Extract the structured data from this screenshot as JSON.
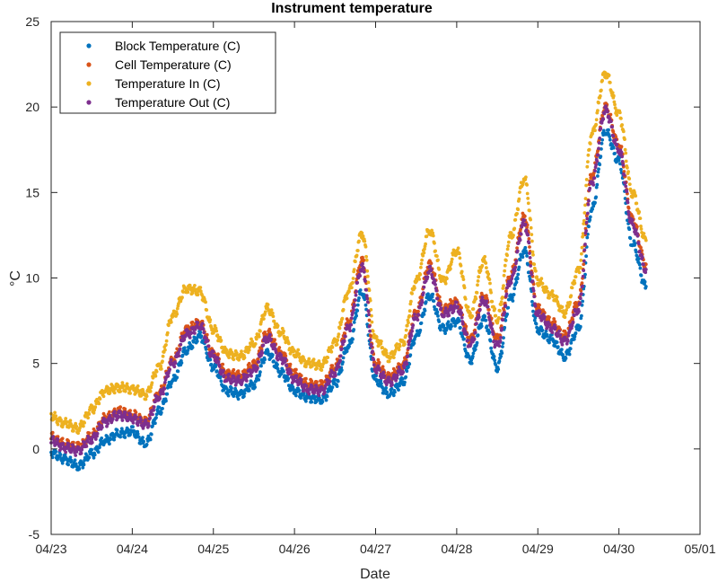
{
  "chart_data": {
    "type": "scatter",
    "title": "Instrument temperature",
    "xlabel": "Date",
    "ylabel": "°C",
    "x_ticks": [
      "04/23",
      "04/24",
      "04/25",
      "04/26",
      "04/27",
      "04/28",
      "04/29",
      "04/30",
      "05/01"
    ],
    "xlim": [
      "04/23",
      "05/01"
    ],
    "ylim": [
      -5,
      25
    ],
    "y_ticks": [
      -5,
      0,
      5,
      10,
      15,
      20,
      25
    ],
    "grid": false,
    "legend_position": "top-left",
    "series": [
      {
        "name": "Block Temperature (C)",
        "color": "#0072BD",
        "points": [
          [
            "04/23 00:00",
            -0.2
          ],
          [
            "04/23 04:00",
            -0.6
          ],
          [
            "04/23 08:00",
            -1.0
          ],
          [
            "04/23 12:00",
            -0.3
          ],
          [
            "04/23 16:00",
            0.5
          ],
          [
            "04/23 20:00",
            0.9
          ],
          [
            "04/24 00:00",
            1.0
          ],
          [
            "04/24 04:00",
            0.3
          ],
          [
            "04/24 08:00",
            2.2
          ],
          [
            "04/24 12:00",
            4.0
          ],
          [
            "04/24 16:00",
            5.8
          ],
          [
            "04/24 20:00",
            6.6
          ],
          [
            "04/25 00:00",
            4.8
          ],
          [
            "04/25 04:00",
            3.4
          ],
          [
            "04/25 08:00",
            3.2
          ],
          [
            "04/25 12:00",
            3.8
          ],
          [
            "04/25 16:00",
            5.6
          ],
          [
            "04/25 20:00",
            4.5
          ],
          [
            "04/26 00:00",
            3.4
          ],
          [
            "04/26 04:00",
            3.0
          ],
          [
            "04/26 08:00",
            2.9
          ],
          [
            "04/26 12:00",
            3.8
          ],
          [
            "04/26 16:00",
            6.0
          ],
          [
            "04/26 20:00",
            9.2
          ],
          [
            "04/27 00:00",
            4.0
          ],
          [
            "04/27 04:00",
            3.2
          ],
          [
            "04/27 08:00",
            3.9
          ],
          [
            "04/27 12:00",
            6.6
          ],
          [
            "04/27 16:00",
            9.0
          ],
          [
            "04/27 20:00",
            7.0
          ],
          [
            "04/28 00:00",
            7.5
          ],
          [
            "04/28 04:00",
            5.2
          ],
          [
            "04/28 08:00",
            7.6
          ],
          [
            "04/28 12:00",
            4.8
          ],
          [
            "04/28 16:00",
            8.8
          ],
          [
            "04/28 20:00",
            11.6
          ],
          [
            "04/29 00:00",
            7.0
          ],
          [
            "04/29 04:00",
            6.4
          ],
          [
            "04/29 08:00",
            5.4
          ],
          [
            "04/29 12:00",
            7.0
          ],
          [
            "04/29 16:00",
            14.0
          ],
          [
            "04/29 20:00",
            18.6
          ],
          [
            "04/30 00:00",
            16.8
          ],
          [
            "04/30 04:00",
            12.0
          ],
          [
            "04/30 08:00",
            9.5
          ]
        ]
      },
      {
        "name": "Cell Temperature (C)",
        "color": "#D95319",
        "points": [
          [
            "04/23 00:00",
            0.7
          ],
          [
            "04/23 04:00",
            0.3
          ],
          [
            "04/23 08:00",
            0.1
          ],
          [
            "04/23 12:00",
            0.8
          ],
          [
            "04/23 16:00",
            1.8
          ],
          [
            "04/23 20:00",
            2.2
          ],
          [
            "04/24 00:00",
            2.0
          ],
          [
            "04/24 04:00",
            1.6
          ],
          [
            "04/24 08:00",
            3.3
          ],
          [
            "04/24 12:00",
            5.2
          ],
          [
            "04/24 16:00",
            7.0
          ],
          [
            "04/24 20:00",
            7.4
          ],
          [
            "04/25 00:00",
            5.6
          ],
          [
            "04/25 04:00",
            4.4
          ],
          [
            "04/25 08:00",
            4.3
          ],
          [
            "04/25 12:00",
            4.9
          ],
          [
            "04/25 16:00",
            6.8
          ],
          [
            "04/25 20:00",
            5.6
          ],
          [
            "04/26 00:00",
            4.4
          ],
          [
            "04/26 04:00",
            3.8
          ],
          [
            "04/26 08:00",
            3.7
          ],
          [
            "04/26 12:00",
            4.8
          ],
          [
            "04/26 16:00",
            7.4
          ],
          [
            "04/26 20:00",
            11.0
          ],
          [
            "04/27 00:00",
            5.0
          ],
          [
            "04/27 04:00",
            4.2
          ],
          [
            "04/27 08:00",
            4.9
          ],
          [
            "04/27 12:00",
            8.0
          ],
          [
            "04/27 16:00",
            10.8
          ],
          [
            "04/27 20:00",
            8.2
          ],
          [
            "04/28 00:00",
            8.6
          ],
          [
            "04/28 04:00",
            6.4
          ],
          [
            "04/28 08:00",
            9.0
          ],
          [
            "04/28 12:00",
            6.4
          ],
          [
            "04/28 16:00",
            10.2
          ],
          [
            "04/28 20:00",
            13.6
          ],
          [
            "04/29 00:00",
            8.2
          ],
          [
            "04/29 04:00",
            7.4
          ],
          [
            "04/29 08:00",
            6.6
          ],
          [
            "04/29 12:00",
            8.6
          ],
          [
            "04/29 16:00",
            16.0
          ],
          [
            "04/29 20:00",
            20.0
          ],
          [
            "04/30 00:00",
            17.8
          ],
          [
            "04/30 04:00",
            13.4
          ],
          [
            "04/30 08:00",
            10.8
          ]
        ]
      },
      {
        "name": "Temperature In (C)",
        "color": "#EDB120",
        "points": [
          [
            "04/23 00:00",
            1.9
          ],
          [
            "04/23 04:00",
            1.5
          ],
          [
            "04/23 08:00",
            1.2
          ],
          [
            "04/23 12:00",
            2.3
          ],
          [
            "04/23 16:00",
            3.4
          ],
          [
            "04/23 20:00",
            3.6
          ],
          [
            "04/24 00:00",
            3.5
          ],
          [
            "04/24 04:00",
            3.2
          ],
          [
            "04/24 08:00",
            4.8
          ],
          [
            "04/24 12:00",
            7.8
          ],
          [
            "04/24 16:00",
            9.4
          ],
          [
            "04/24 20:00",
            9.2
          ],
          [
            "04/25 00:00",
            7.0
          ],
          [
            "04/25 04:00",
            5.6
          ],
          [
            "04/25 08:00",
            5.4
          ],
          [
            "04/25 12:00",
            6.2
          ],
          [
            "04/25 16:00",
            8.2
          ],
          [
            "04/25 20:00",
            6.8
          ],
          [
            "04/26 00:00",
            5.6
          ],
          [
            "04/26 04:00",
            5.0
          ],
          [
            "04/26 08:00",
            4.9
          ],
          [
            "04/26 12:00",
            6.2
          ],
          [
            "04/26 16:00",
            9.2
          ],
          [
            "04/26 20:00",
            12.6
          ],
          [
            "04/27 00:00",
            6.4
          ],
          [
            "04/27 04:00",
            5.4
          ],
          [
            "04/27 08:00",
            6.2
          ],
          [
            "04/27 12:00",
            9.8
          ],
          [
            "04/27 16:00",
            12.8
          ],
          [
            "04/27 20:00",
            9.8
          ],
          [
            "04/28 00:00",
            11.6
          ],
          [
            "04/28 04:00",
            7.8
          ],
          [
            "04/28 08:00",
            11.0
          ],
          [
            "04/28 12:00",
            7.6
          ],
          [
            "04/28 16:00",
            12.4
          ],
          [
            "04/28 20:00",
            15.8
          ],
          [
            "04/29 00:00",
            9.8
          ],
          [
            "04/29 04:00",
            9.0
          ],
          [
            "04/29 08:00",
            8.0
          ],
          [
            "04/29 12:00",
            10.4
          ],
          [
            "04/29 16:00",
            18.4
          ],
          [
            "04/29 20:00",
            22.0
          ],
          [
            "04/30 00:00",
            19.6
          ],
          [
            "04/30 04:00",
            15.0
          ],
          [
            "04/30 08:00",
            12.2
          ]
        ]
      },
      {
        "name": "Temperature Out (C)",
        "color": "#7E2F8E",
        "points": [
          [
            "04/23 00:00",
            0.5
          ],
          [
            "04/23 04:00",
            0.1
          ],
          [
            "04/23 08:00",
            -0.1
          ],
          [
            "04/23 12:00",
            0.6
          ],
          [
            "04/23 16:00",
            1.6
          ],
          [
            "04/23 20:00",
            2.0
          ],
          [
            "04/24 00:00",
            1.8
          ],
          [
            "04/24 04:00",
            1.4
          ],
          [
            "04/24 08:00",
            3.1
          ],
          [
            "04/24 12:00",
            5.0
          ],
          [
            "04/24 16:00",
            6.7
          ],
          [
            "04/24 20:00",
            7.2
          ],
          [
            "04/25 00:00",
            5.4
          ],
          [
            "04/25 04:00",
            4.1
          ],
          [
            "04/25 08:00",
            4.0
          ],
          [
            "04/25 12:00",
            4.6
          ],
          [
            "04/25 16:00",
            6.5
          ],
          [
            "04/25 20:00",
            5.3
          ],
          [
            "04/26 00:00",
            4.1
          ],
          [
            "04/26 04:00",
            3.5
          ],
          [
            "04/26 08:00",
            3.4
          ],
          [
            "04/26 12:00",
            4.5
          ],
          [
            "04/26 16:00",
            7.1
          ],
          [
            "04/26 20:00",
            10.6
          ],
          [
            "04/27 00:00",
            4.7
          ],
          [
            "04/27 04:00",
            3.9
          ],
          [
            "04/27 08:00",
            4.6
          ],
          [
            "04/27 12:00",
            7.7
          ],
          [
            "04/27 16:00",
            10.4
          ],
          [
            "04/27 20:00",
            7.9
          ],
          [
            "04/28 00:00",
            8.3
          ],
          [
            "04/28 04:00",
            6.1
          ],
          [
            "04/28 08:00",
            8.7
          ],
          [
            "04/28 12:00",
            6.0
          ],
          [
            "04/28 16:00",
            9.9
          ],
          [
            "04/28 20:00",
            13.2
          ],
          [
            "04/29 00:00",
            7.9
          ],
          [
            "04/29 04:00",
            7.1
          ],
          [
            "04/29 08:00",
            6.3
          ],
          [
            "04/29 12:00",
            8.2
          ],
          [
            "04/29 16:00",
            15.6
          ],
          [
            "04/29 20:00",
            19.8
          ],
          [
            "04/30 00:00",
            17.5
          ],
          [
            "04/30 04:00",
            13.1
          ],
          [
            "04/30 08:00",
            10.5
          ]
        ]
      }
    ]
  }
}
